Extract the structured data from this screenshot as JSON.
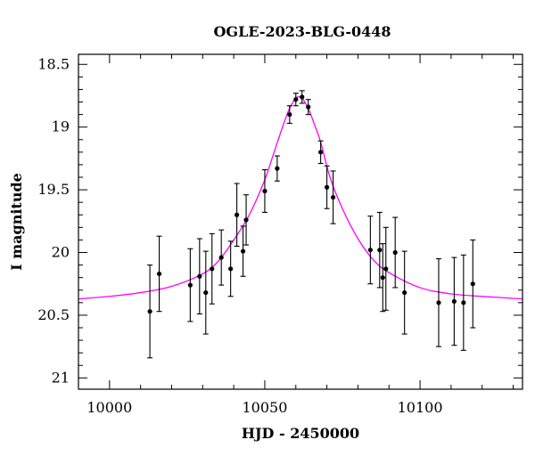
{
  "chart_data": {
    "type": "scatter",
    "title": "OGLE-2023-BLG-0448",
    "xlabel": "HJD - 2450000",
    "ylabel": "I magnitude",
    "xlim": [
      9990,
      10133
    ],
    "ylim": [
      21.09,
      18.42
    ],
    "y_inverted": true,
    "x_ticks": [
      10000,
      10050,
      10100
    ],
    "y_ticks": [
      18.5,
      19,
      19.5,
      20,
      20.5,
      21
    ],
    "y_tick_labels": [
      "18.5",
      "19",
      "19.5",
      "20",
      "20.5",
      "21"
    ],
    "x_minor_step": 10,
    "y_minor_step": 0.1,
    "grid": false,
    "model_color": "#ff00ff",
    "point_color": "#000000",
    "series": [
      {
        "x": [
          10013,
          10016,
          10026,
          10029,
          10031,
          10033,
          10036,
          10039,
          10041,
          10043,
          10044,
          10050,
          10054,
          10058,
          10060,
          10062,
          10064,
          10068,
          10070,
          10072,
          10084,
          10087,
          10088,
          10089,
          10092,
          10095,
          10106,
          10111,
          10114,
          10117
        ],
        "y": [
          20.47,
          20.17,
          20.26,
          20.19,
          20.32,
          20.13,
          20.04,
          20.13,
          19.7,
          19.99,
          19.74,
          19.51,
          19.33,
          18.9,
          18.78,
          18.76,
          18.84,
          19.2,
          19.48,
          19.56,
          19.98,
          19.98,
          20.2,
          20.13,
          20.0,
          20.32,
          20.4,
          20.39,
          20.4,
          20.25
        ],
        "yerr": [
          0.37,
          0.3,
          0.29,
          0.3,
          0.33,
          0.28,
          0.22,
          0.22,
          0.25,
          0.2,
          0.2,
          0.17,
          0.1,
          0.07,
          0.05,
          0.05,
          0.06,
          0.09,
          0.17,
          0.21,
          0.27,
          0.3,
          0.27,
          0.33,
          0.28,
          0.33,
          0.35,
          0.35,
          0.38,
          0.35
        ]
      }
    ],
    "model_curve": {
      "x": [
        9990,
        10000,
        10010,
        10020,
        10030,
        10035,
        10040,
        10045,
        10050,
        10053,
        10056,
        10058,
        10060,
        10061,
        10062,
        10064,
        10066,
        10068,
        10071,
        10075,
        10080,
        10085,
        10090,
        10100,
        10110,
        10120,
        10133
      ],
      "y": [
        20.37,
        20.35,
        20.32,
        20.27,
        20.17,
        20.07,
        19.9,
        19.7,
        19.42,
        19.2,
        18.98,
        18.85,
        18.77,
        18.76,
        18.77,
        18.85,
        18.98,
        19.12,
        19.4,
        19.65,
        19.89,
        20.06,
        20.16,
        20.28,
        20.33,
        20.35,
        20.37
      ]
    }
  }
}
